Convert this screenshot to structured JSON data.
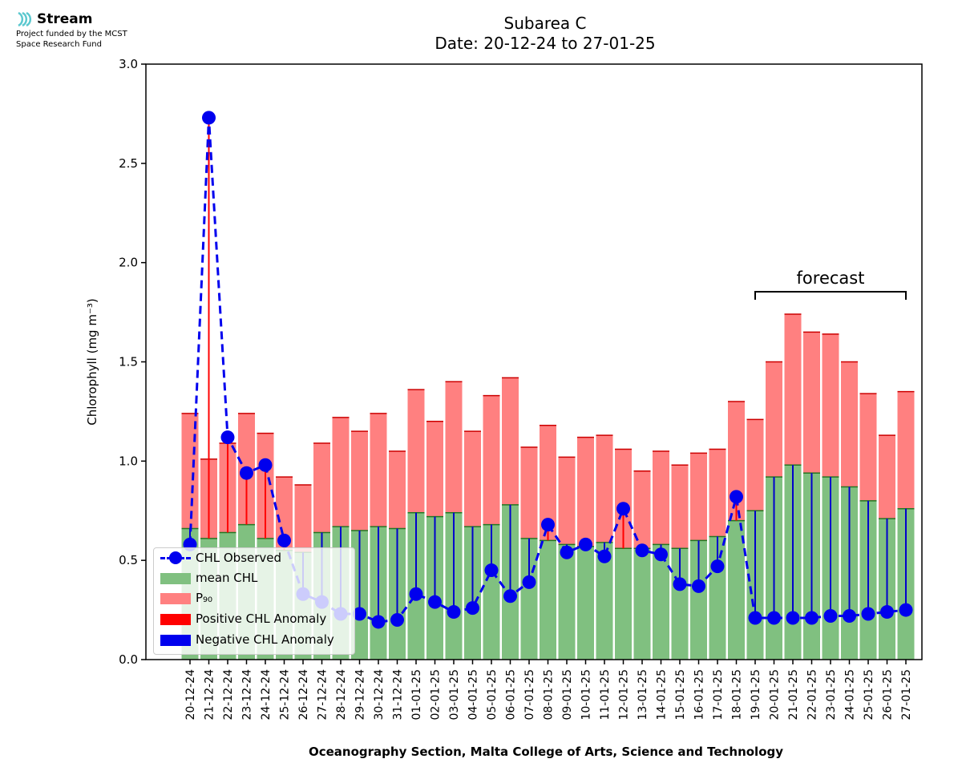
{
  "logo": {
    "name": "Stream",
    "line1": "Project funded by the MCST",
    "line2": "Space Research Fund"
  },
  "title": {
    "line1": "Subarea C",
    "line2": "Date: 20-12-24 to 27-01-25"
  },
  "colors": {
    "mean": "#80c080",
    "p90": "#ff8080",
    "positive_anomaly": "#ff0000",
    "negative_anomaly": "#0000cc",
    "observed": "#0000ee"
  },
  "chart_data": {
    "type": "bar",
    "ylabel": "Chlorophyll (mg m⁻³)",
    "xlabel": "Oceanography Section, Malta College of Arts, Science and Technology",
    "ylim": [
      0,
      3.0
    ],
    "yticks": [
      "0.0",
      "0.5",
      "1.0",
      "1.5",
      "2.0",
      "2.5",
      "3.0"
    ],
    "categories": [
      "20-12-24",
      "21-12-24",
      "22-12-24",
      "23-12-24",
      "24-12-24",
      "25-12-24",
      "26-12-24",
      "27-12-24",
      "28-12-24",
      "29-12-24",
      "30-12-24",
      "31-12-24",
      "01-01-25",
      "02-01-25",
      "03-01-25",
      "04-01-25",
      "05-01-25",
      "06-01-25",
      "07-01-25",
      "08-01-25",
      "09-01-25",
      "10-01-25",
      "11-01-25",
      "12-01-25",
      "13-01-25",
      "14-01-25",
      "15-01-25",
      "16-01-25",
      "17-01-25",
      "18-01-25",
      "19-01-25",
      "20-01-25",
      "21-01-25",
      "22-01-25",
      "23-01-25",
      "24-01-25",
      "25-01-25",
      "26-01-25",
      "27-01-25"
    ],
    "series": [
      {
        "name": "mean CHL",
        "type": "bar",
        "values": [
          0.66,
          0.61,
          0.64,
          0.68,
          0.61,
          0.55,
          0.54,
          0.64,
          0.67,
          0.65,
          0.67,
          0.66,
          0.74,
          0.72,
          0.74,
          0.67,
          0.68,
          0.78,
          0.61,
          0.6,
          0.58,
          0.57,
          0.59,
          0.56,
          0.56,
          0.58,
          0.56,
          0.6,
          0.62,
          0.7,
          0.75,
          0.92,
          0.98,
          0.94,
          0.92,
          0.87,
          0.8,
          0.71,
          0.76
        ]
      },
      {
        "name": "P₉₀",
        "type": "bar",
        "values": [
          1.24,
          1.01,
          1.09,
          1.24,
          1.14,
          0.92,
          0.88,
          1.09,
          1.22,
          1.15,
          1.24,
          1.05,
          1.36,
          1.2,
          1.4,
          1.15,
          1.33,
          1.42,
          1.07,
          1.18,
          1.02,
          1.12,
          1.13,
          1.06,
          0.95,
          1.05,
          0.98,
          1.04,
          1.06,
          1.3,
          1.21,
          1.5,
          1.74,
          1.65,
          1.64,
          1.5,
          1.34,
          1.13,
          1.35
        ]
      },
      {
        "name": "CHL Observed",
        "type": "line",
        "values": [
          0.58,
          2.73,
          1.12,
          0.94,
          0.98,
          0.6,
          0.33,
          0.29,
          0.23,
          0.23,
          0.19,
          0.2,
          0.33,
          0.29,
          0.24,
          0.26,
          0.45,
          0.32,
          0.39,
          0.68,
          0.54,
          0.58,
          0.52,
          0.76,
          0.55,
          0.53,
          0.38,
          0.37,
          0.47,
          0.82,
          0.21,
          0.21,
          0.21,
          0.21,
          0.22,
          0.22,
          0.23,
          0.24,
          0.25
        ]
      }
    ],
    "legend": {
      "placement": "lower-left",
      "entries": [
        "CHL Observed",
        "mean CHL",
        "P₉₀",
        "Positive CHL Anomaly",
        "Negative CHL Anomaly"
      ]
    },
    "annotation": {
      "text": "forecast",
      "from": "19-01-25",
      "to": "27-01-25"
    }
  }
}
